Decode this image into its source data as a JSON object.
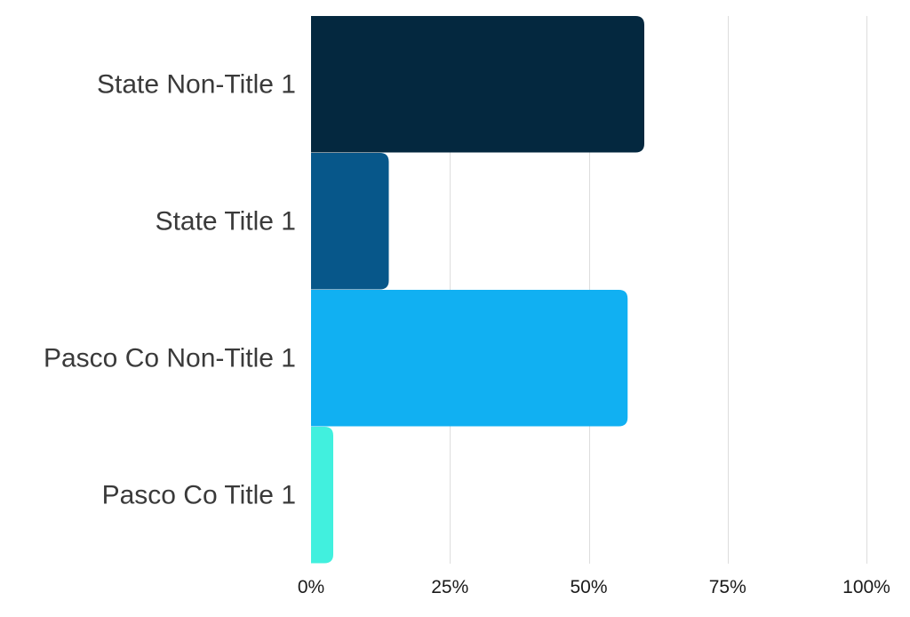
{
  "chart_data": {
    "type": "bar",
    "orientation": "horizontal",
    "title": "",
    "xlabel": "",
    "ylabel": "",
    "categories": [
      "State Non-Title 1",
      "State Title 1",
      "Pasco Co Non-Title 1",
      "Pasco Co Title 1"
    ],
    "values": [
      60,
      14,
      57,
      4
    ],
    "colors": [
      "#04283f",
      "#07578a",
      "#11b0f2",
      "#41f0de"
    ],
    "xlim": [
      0,
      100
    ],
    "x_ticks": [
      0,
      25,
      50,
      75,
      100
    ],
    "x_tick_labels": [
      "0%",
      "25%",
      "50%",
      "75%",
      "100%"
    ],
    "grid": true,
    "legend": "none"
  }
}
